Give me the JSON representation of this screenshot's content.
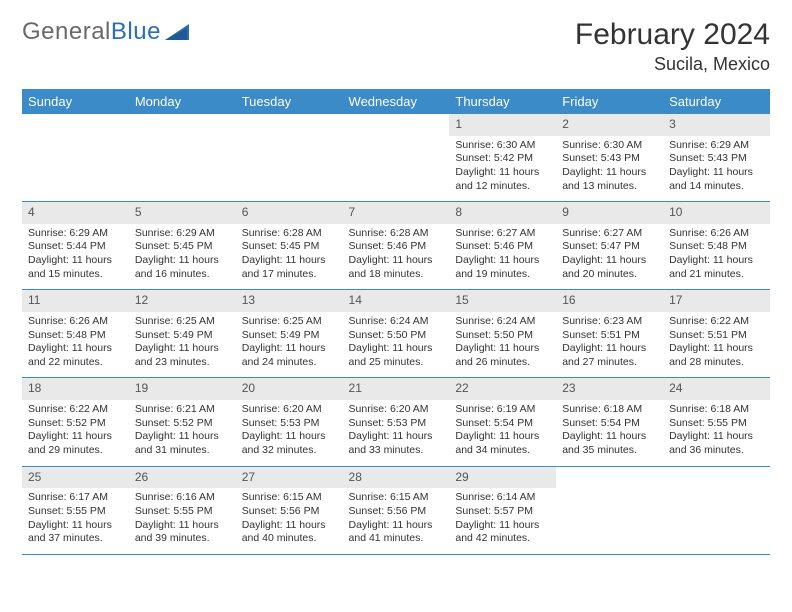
{
  "logo": {
    "part1": "General",
    "part2": "Blue"
  },
  "title": "February 2024",
  "location": "Sucila, Mexico",
  "colors": {
    "header_bg": "#3b8bc9",
    "header_text": "#ffffff",
    "daynum_bg": "#e9e9e9",
    "row_border": "#3b8bc9",
    "text": "#333333",
    "logo_gray": "#6a6a6a",
    "logo_blue": "#2a6fb5",
    "background": "#ffffff"
  },
  "typography": {
    "title_fontsize": 30,
    "location_fontsize": 18,
    "header_fontsize": 13,
    "daynum_fontsize": 12,
    "body_fontsize": 10.5
  },
  "weekdays": [
    "Sunday",
    "Monday",
    "Tuesday",
    "Wednesday",
    "Thursday",
    "Friday",
    "Saturday"
  ],
  "weeks": [
    [
      {
        "empty": true
      },
      {
        "empty": true
      },
      {
        "empty": true
      },
      {
        "empty": true
      },
      {
        "n": "1",
        "sr": "Sunrise: 6:30 AM",
        "ss": "Sunset: 5:42 PM",
        "dl": "Daylight: 11 hours and 12 minutes."
      },
      {
        "n": "2",
        "sr": "Sunrise: 6:30 AM",
        "ss": "Sunset: 5:43 PM",
        "dl": "Daylight: 11 hours and 13 minutes."
      },
      {
        "n": "3",
        "sr": "Sunrise: 6:29 AM",
        "ss": "Sunset: 5:43 PM",
        "dl": "Daylight: 11 hours and 14 minutes."
      }
    ],
    [
      {
        "n": "4",
        "sr": "Sunrise: 6:29 AM",
        "ss": "Sunset: 5:44 PM",
        "dl": "Daylight: 11 hours and 15 minutes."
      },
      {
        "n": "5",
        "sr": "Sunrise: 6:29 AM",
        "ss": "Sunset: 5:45 PM",
        "dl": "Daylight: 11 hours and 16 minutes."
      },
      {
        "n": "6",
        "sr": "Sunrise: 6:28 AM",
        "ss": "Sunset: 5:45 PM",
        "dl": "Daylight: 11 hours and 17 minutes."
      },
      {
        "n": "7",
        "sr": "Sunrise: 6:28 AM",
        "ss": "Sunset: 5:46 PM",
        "dl": "Daylight: 11 hours and 18 minutes."
      },
      {
        "n": "8",
        "sr": "Sunrise: 6:27 AM",
        "ss": "Sunset: 5:46 PM",
        "dl": "Daylight: 11 hours and 19 minutes."
      },
      {
        "n": "9",
        "sr": "Sunrise: 6:27 AM",
        "ss": "Sunset: 5:47 PM",
        "dl": "Daylight: 11 hours and 20 minutes."
      },
      {
        "n": "10",
        "sr": "Sunrise: 6:26 AM",
        "ss": "Sunset: 5:48 PM",
        "dl": "Daylight: 11 hours and 21 minutes."
      }
    ],
    [
      {
        "n": "11",
        "sr": "Sunrise: 6:26 AM",
        "ss": "Sunset: 5:48 PM",
        "dl": "Daylight: 11 hours and 22 minutes."
      },
      {
        "n": "12",
        "sr": "Sunrise: 6:25 AM",
        "ss": "Sunset: 5:49 PM",
        "dl": "Daylight: 11 hours and 23 minutes."
      },
      {
        "n": "13",
        "sr": "Sunrise: 6:25 AM",
        "ss": "Sunset: 5:49 PM",
        "dl": "Daylight: 11 hours and 24 minutes."
      },
      {
        "n": "14",
        "sr": "Sunrise: 6:24 AM",
        "ss": "Sunset: 5:50 PM",
        "dl": "Daylight: 11 hours and 25 minutes."
      },
      {
        "n": "15",
        "sr": "Sunrise: 6:24 AM",
        "ss": "Sunset: 5:50 PM",
        "dl": "Daylight: 11 hours and 26 minutes."
      },
      {
        "n": "16",
        "sr": "Sunrise: 6:23 AM",
        "ss": "Sunset: 5:51 PM",
        "dl": "Daylight: 11 hours and 27 minutes."
      },
      {
        "n": "17",
        "sr": "Sunrise: 6:22 AM",
        "ss": "Sunset: 5:51 PM",
        "dl": "Daylight: 11 hours and 28 minutes."
      }
    ],
    [
      {
        "n": "18",
        "sr": "Sunrise: 6:22 AM",
        "ss": "Sunset: 5:52 PM",
        "dl": "Daylight: 11 hours and 29 minutes."
      },
      {
        "n": "19",
        "sr": "Sunrise: 6:21 AM",
        "ss": "Sunset: 5:52 PM",
        "dl": "Daylight: 11 hours and 31 minutes."
      },
      {
        "n": "20",
        "sr": "Sunrise: 6:20 AM",
        "ss": "Sunset: 5:53 PM",
        "dl": "Daylight: 11 hours and 32 minutes."
      },
      {
        "n": "21",
        "sr": "Sunrise: 6:20 AM",
        "ss": "Sunset: 5:53 PM",
        "dl": "Daylight: 11 hours and 33 minutes."
      },
      {
        "n": "22",
        "sr": "Sunrise: 6:19 AM",
        "ss": "Sunset: 5:54 PM",
        "dl": "Daylight: 11 hours and 34 minutes."
      },
      {
        "n": "23",
        "sr": "Sunrise: 6:18 AM",
        "ss": "Sunset: 5:54 PM",
        "dl": "Daylight: 11 hours and 35 minutes."
      },
      {
        "n": "24",
        "sr": "Sunrise: 6:18 AM",
        "ss": "Sunset: 5:55 PM",
        "dl": "Daylight: 11 hours and 36 minutes."
      }
    ],
    [
      {
        "n": "25",
        "sr": "Sunrise: 6:17 AM",
        "ss": "Sunset: 5:55 PM",
        "dl": "Daylight: 11 hours and 37 minutes."
      },
      {
        "n": "26",
        "sr": "Sunrise: 6:16 AM",
        "ss": "Sunset: 5:55 PM",
        "dl": "Daylight: 11 hours and 39 minutes."
      },
      {
        "n": "27",
        "sr": "Sunrise: 6:15 AM",
        "ss": "Sunset: 5:56 PM",
        "dl": "Daylight: 11 hours and 40 minutes."
      },
      {
        "n": "28",
        "sr": "Sunrise: 6:15 AM",
        "ss": "Sunset: 5:56 PM",
        "dl": "Daylight: 11 hours and 41 minutes."
      },
      {
        "n": "29",
        "sr": "Sunrise: 6:14 AM",
        "ss": "Sunset: 5:57 PM",
        "dl": "Daylight: 11 hours and 42 minutes."
      },
      {
        "empty": true
      },
      {
        "empty": true
      }
    ]
  ]
}
